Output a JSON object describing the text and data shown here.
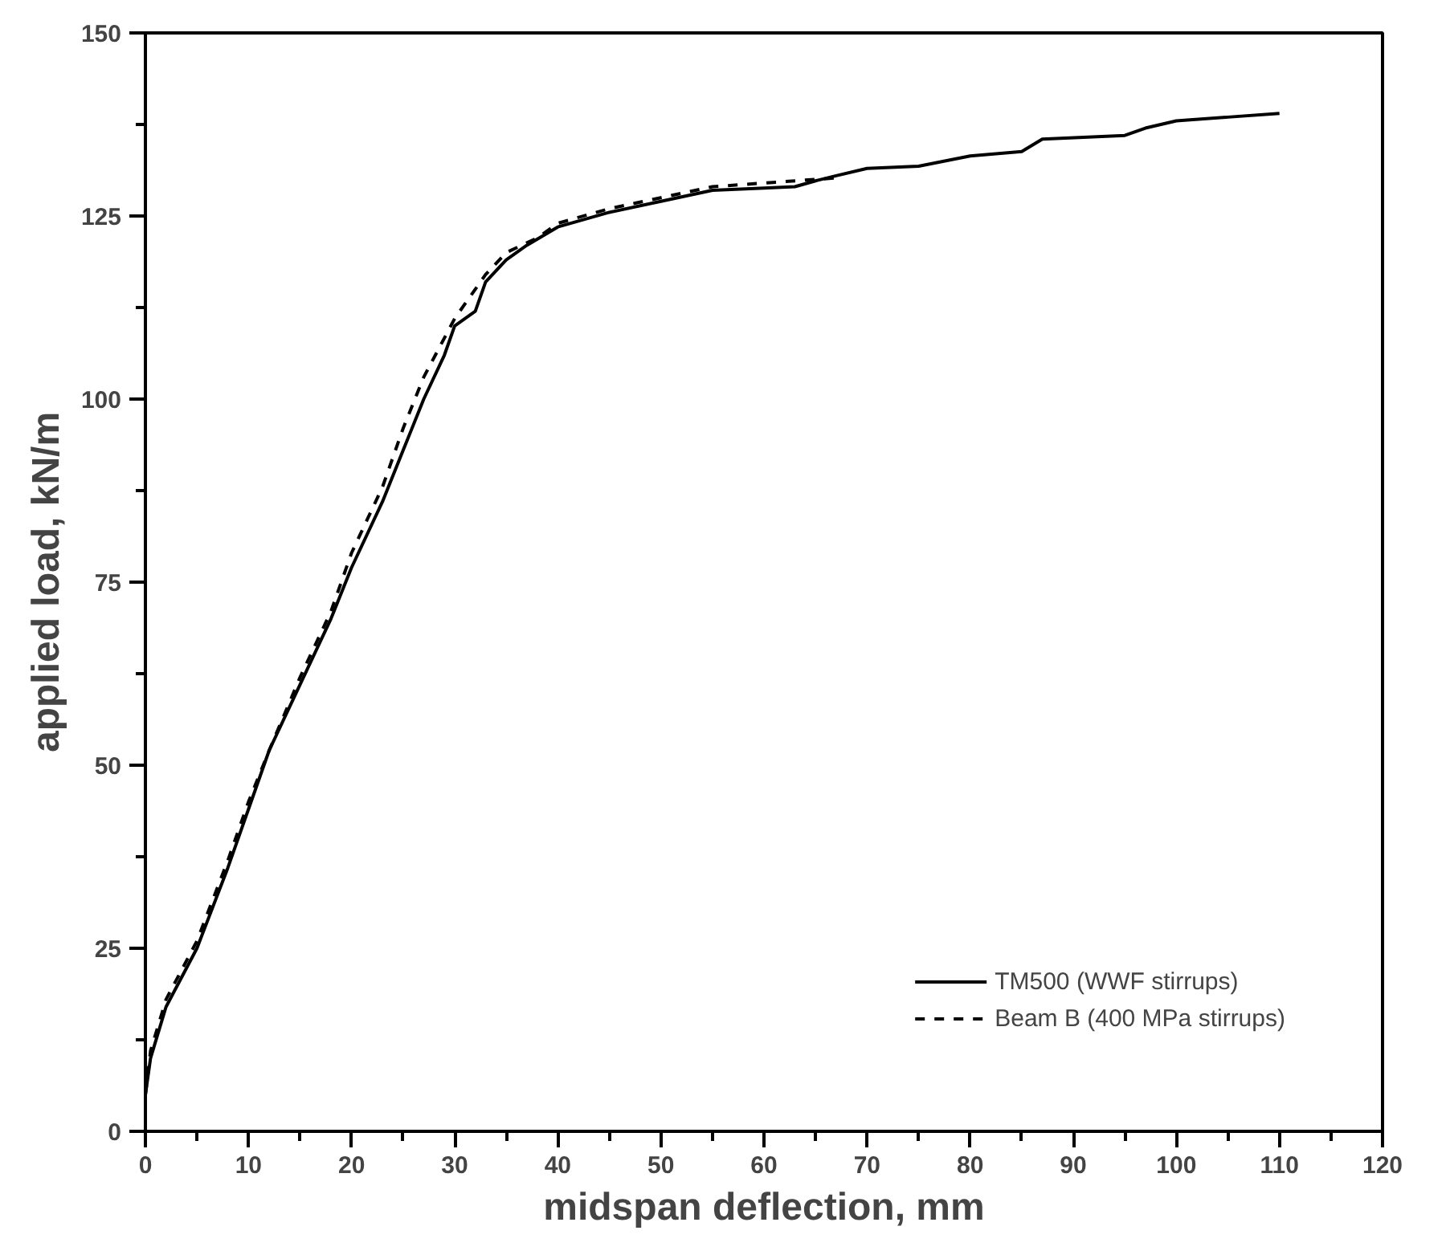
{
  "chart_data": {
    "type": "line",
    "xlabel": "midspan deflection, mm",
    "ylabel": "applied load, kN/m",
    "xlim": [
      0,
      120
    ],
    "ylim": [
      0,
      150
    ],
    "xticks": [
      0,
      10,
      20,
      30,
      40,
      50,
      60,
      70,
      80,
      90,
      100,
      110,
      120
    ],
    "yticks": [
      0,
      25,
      50,
      75,
      100,
      125,
      150
    ],
    "grid": false,
    "legend": "bottom right",
    "marker": "none",
    "series": [
      {
        "name": "TM500 (WWF stirrups)",
        "color": "#000000",
        "line_style": "solid",
        "x": [
          0,
          0.5,
          2,
          5,
          8,
          10,
          12,
          15,
          18,
          20,
          23,
          25,
          27,
          29,
          30,
          32,
          33,
          35,
          37,
          40,
          45,
          50,
          55,
          60,
          63,
          65,
          67,
          70,
          75,
          80,
          85,
          87,
          95,
          97,
          100,
          105,
          110
        ],
        "values": [
          5,
          10,
          17,
          25,
          36,
          44,
          52,
          61,
          70,
          77,
          86,
          93,
          100,
          106,
          110,
          112,
          116,
          119,
          121,
          123.5,
          125.5,
          127,
          128.5,
          128.8,
          129,
          129.8,
          130.5,
          131.5,
          131.8,
          133.2,
          133.8,
          135.5,
          136,
          137,
          138,
          138.5,
          139
        ]
      },
      {
        "name": "Beam B (400 MPa stirrups)",
        "color": "#000000",
        "line_style": "dashed",
        "x": [
          0,
          0.5,
          2,
          5,
          8,
          10,
          12,
          15,
          18,
          20,
          23,
          25,
          27,
          30,
          33,
          35,
          38,
          40,
          45,
          50,
          55,
          60,
          65,
          67
        ],
        "values": [
          5,
          11,
          18,
          26,
          37,
          45,
          52,
          62,
          71,
          79,
          88,
          96,
          103,
          111,
          117,
          120,
          122,
          124,
          126,
          127.5,
          129,
          129.5,
          130,
          130.2
        ]
      }
    ]
  }
}
